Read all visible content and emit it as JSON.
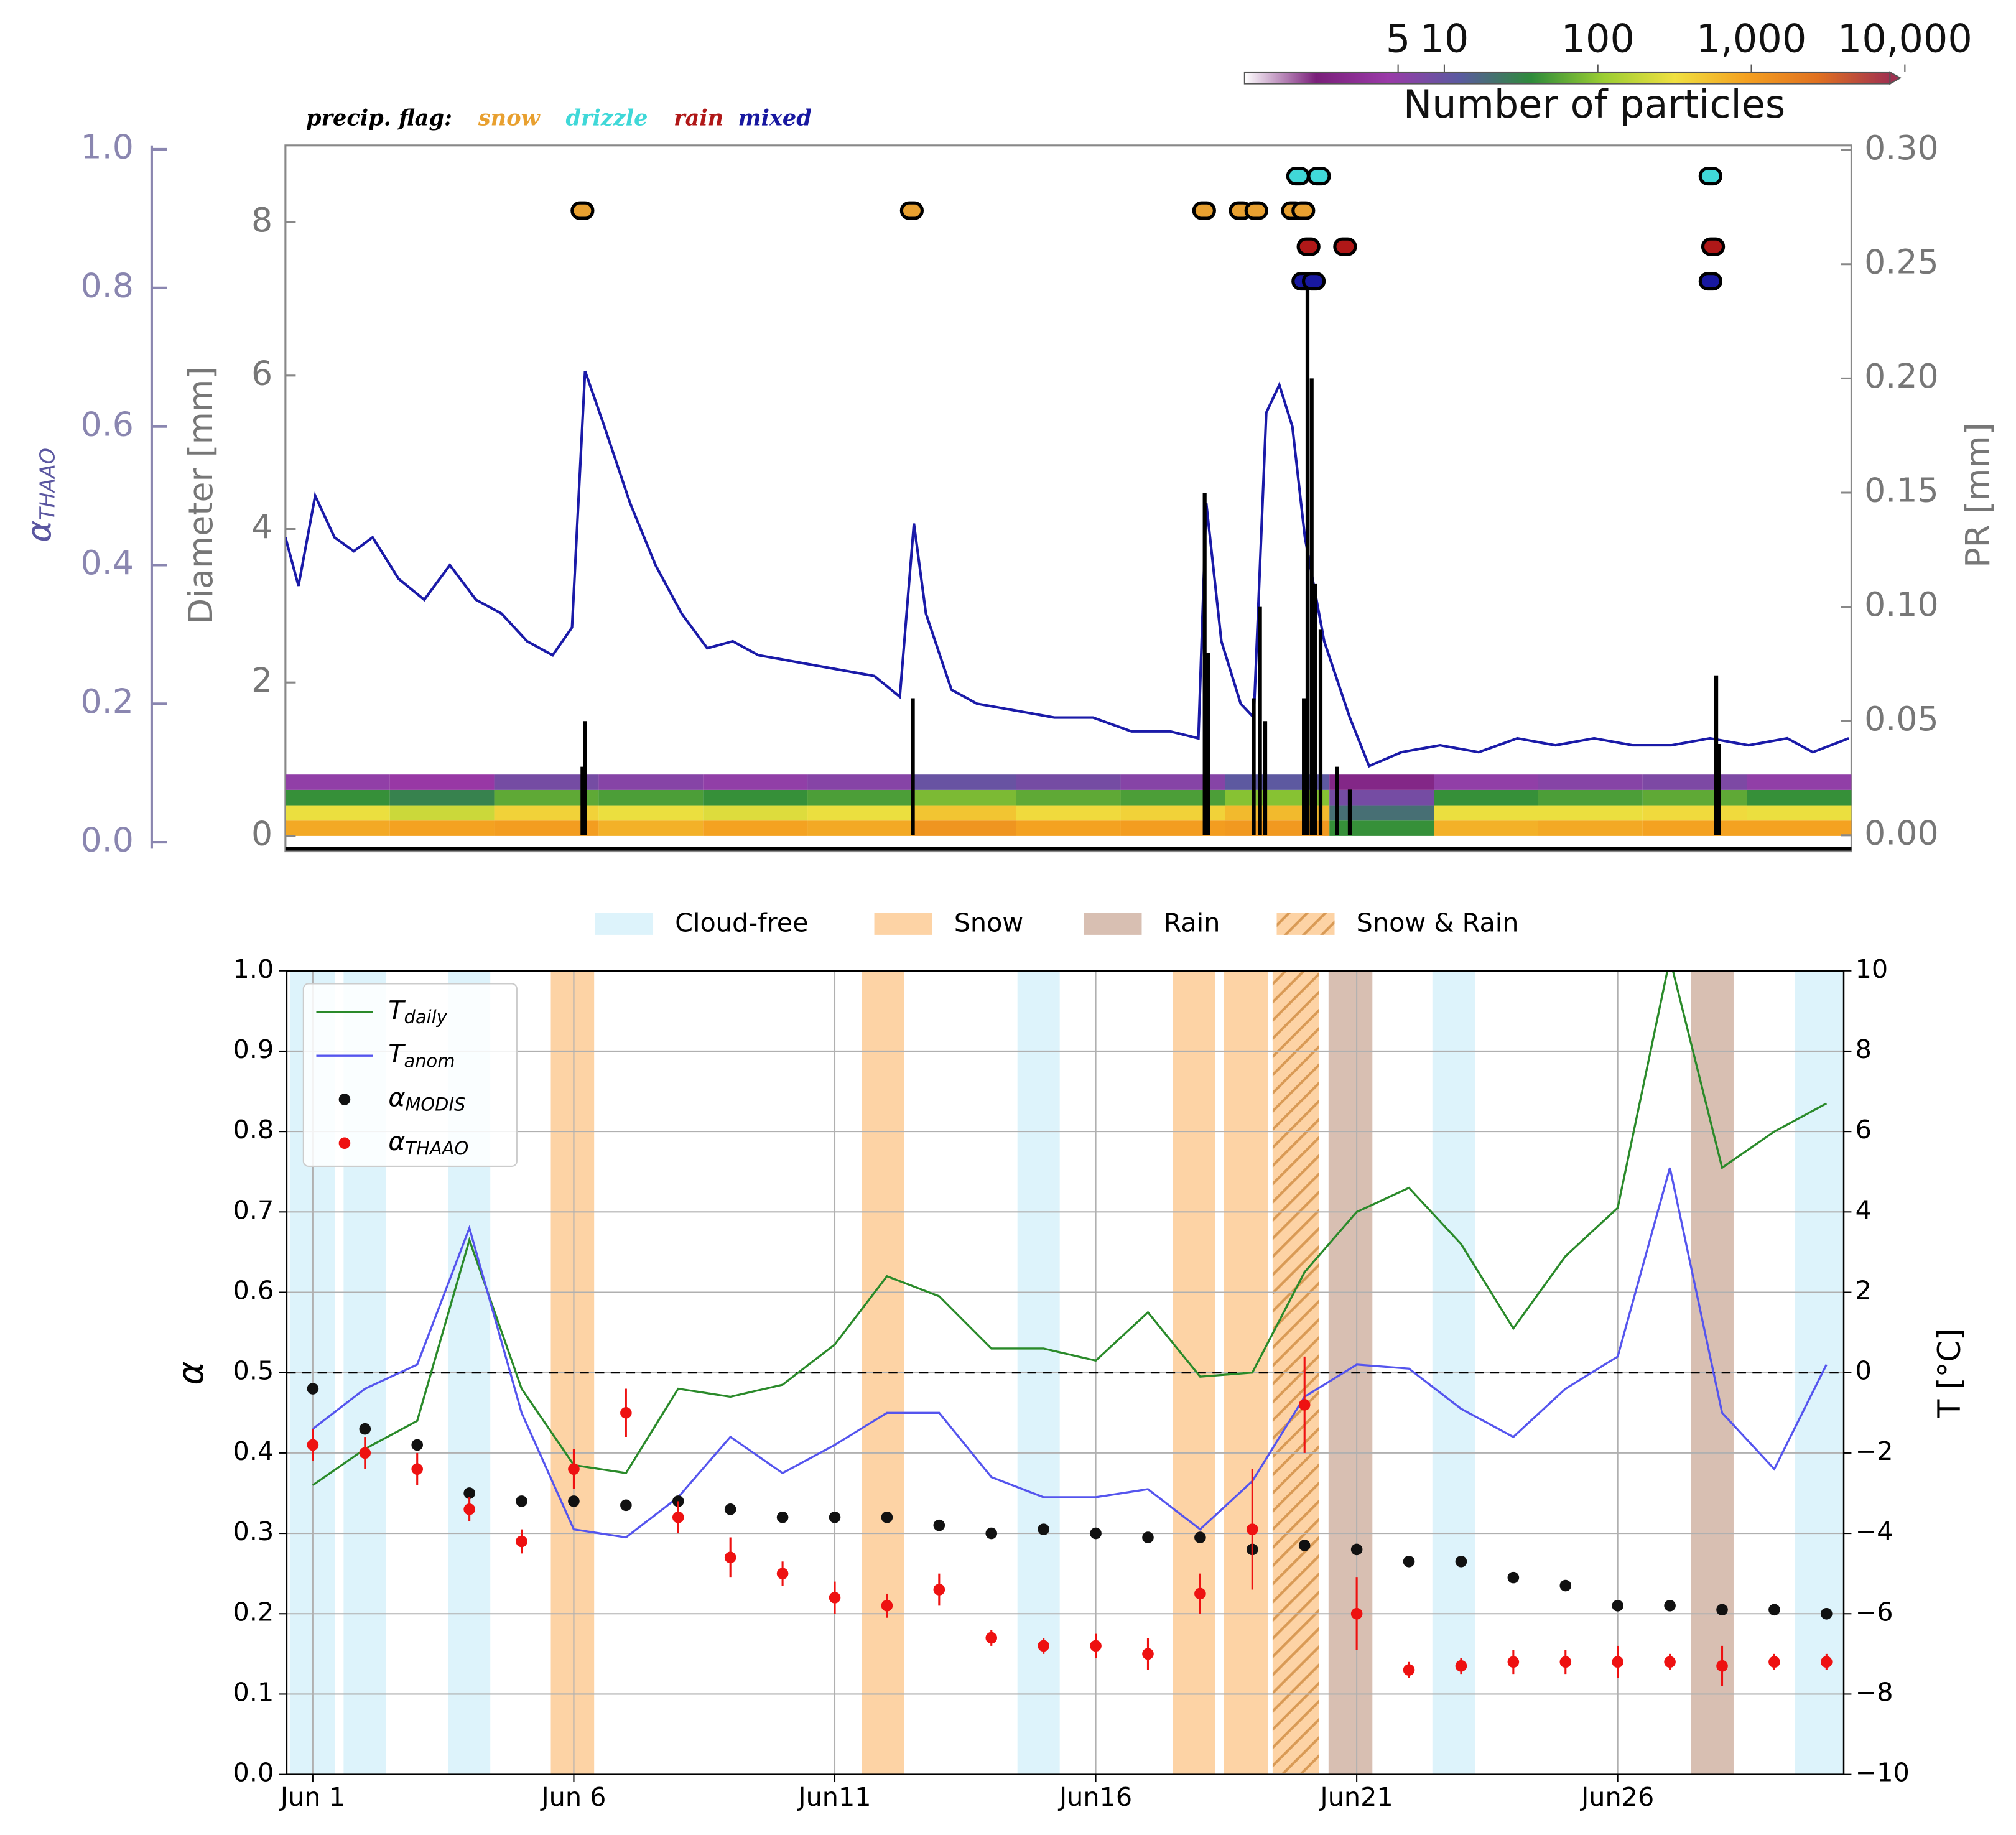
{
  "chart_data": [
    {
      "type": "heatmap",
      "xlim": [
        1,
        31
      ],
      "ylim": [
        0,
        1
      ],
      "yticks": [
        {
          "value": 0,
          "label": "0.0"
        },
        0.2,
        0.4,
        0.6,
        0.8,
        {
          "value": 1,
          "label": "1.0"
        }
      ],
      "ylabel": "αTHAAO",
      "dlim": [
        -0.2,
        9.0
      ],
      "dticks": [
        0,
        2,
        4,
        6,
        8
      ],
      "dlabel": "Diameter [mm]",
      "y2lim": [
        -0.007,
        0.302
      ],
      "y2ticks": [
        {
          "value": 0,
          "label": "0.00"
        },
        0.05,
        {
          "value": 0.1,
          "label": "0.10"
        },
        0.15,
        {
          "value": 0.2,
          "label": "0.20"
        },
        0.25,
        {
          "value": 0.3,
          "label": "0.30"
        }
      ],
      "y2label": "PR [mm]",
      "series": [
        {
          "color": "#1a1aa8",
          "x": [
            1.0,
            1.25,
            1.57,
            1.94,
            2.31,
            2.67,
            3.17,
            3.66,
            4.15,
            4.65,
            5.14,
            5.63,
            6.12,
            6.49,
            6.74,
            7.11,
            7.6,
            8.09,
            8.59,
            9.08,
            9.57,
            10.06,
            10.8,
            11.54,
            12.28,
            12.77,
            13.04,
            13.27,
            13.76,
            14.25,
            14.99,
            15.73,
            16.47,
            17.21,
            17.95,
            18.49,
            18.64,
            18.93,
            19.3,
            19.55,
            19.79,
            20.04,
            20.29,
            20.53,
            20.9,
            21.39,
            21.76,
            22.38,
            23.12,
            23.86,
            24.6,
            25.33,
            26.07,
            26.81,
            27.55,
            28.29,
            29.03,
            29.77,
            30.26,
            30.95
          ],
          "values": [
            0.44,
            0.37,
            0.5,
            0.44,
            0.42,
            0.44,
            0.38,
            0.35,
            0.4,
            0.35,
            0.33,
            0.29,
            0.27,
            0.31,
            0.68,
            0.6,
            0.49,
            0.4,
            0.33,
            0.28,
            0.29,
            0.27,
            0.26,
            0.25,
            0.24,
            0.21,
            0.46,
            0.33,
            0.22,
            0.2,
            0.19,
            0.18,
            0.18,
            0.16,
            0.16,
            0.15,
            0.49,
            0.29,
            0.2,
            0.18,
            0.62,
            0.66,
            0.6,
            0.44,
            0.29,
            0.18,
            0.11,
            0.13,
            0.14,
            0.13,
            0.15,
            0.14,
            0.15,
            0.14,
            0.14,
            0.15,
            0.14,
            0.15,
            0.13,
            0.15
          ]
        }
      ],
      "pr": {
        "color": "#000000",
        "x": [
          6.69,
          6.74,
          13.02,
          18.61,
          18.68,
          19.55,
          19.67,
          19.77,
          20.51,
          20.58,
          20.66,
          20.73,
          20.83,
          21.15,
          21.39,
          28.41,
          28.46
        ],
        "values": [
          0.03,
          0.05,
          0.06,
          0.15,
          0.08,
          0.06,
          0.1,
          0.05,
          0.06,
          0.24,
          0.2,
          0.11,
          0.09,
          0.03,
          0.02,
          0.07,
          0.04
        ]
      },
      "particles": {
        "x_bins": [
          1,
          3,
          5,
          7,
          9,
          11,
          13,
          15,
          17,
          19,
          21,
          23,
          25,
          27,
          29,
          31
        ],
        "d_bins": [
          0,
          0.2,
          0.4,
          0.6,
          0.8
        ],
        "counts": [
          [
            800,
            900,
            1000,
            700,
            900,
            800,
            1200,
            900,
            1000,
            1100,
            40,
            700,
            800,
            900,
            900
          ],
          [
            300,
            200,
            400,
            300,
            250,
            300,
            500,
            350,
            400,
            600,
            20,
            300,
            300,
            350,
            300
          ],
          [
            40,
            30,
            60,
            50,
            40,
            50,
            80,
            60,
            50,
            90,
            8,
            40,
            50,
            60,
            40
          ],
          [
            5,
            4,
            8,
            6,
            5,
            6,
            10,
            8,
            6,
            12,
            2,
            5,
            6,
            7,
            5
          ]
        ]
      },
      "colorbar": {
        "label": "Number of particles",
        "clim": [
          0.5,
          8000
        ],
        "log": true,
        "ticks": [
          5,
          10,
          100,
          {
            "value": 1000,
            "label": "1,000"
          },
          {
            "value": 10000,
            "label": "10,000"
          }
        ],
        "colors": [
          "#ffffff",
          "#7a1f7a",
          "#9a3aa8",
          "#5a5aa0",
          "#2e8b3a",
          "#9acd32",
          "#f0e040",
          "#f4a020",
          "#e07020",
          "#a03050"
        ]
      },
      "precip_flag": {
        "label": "precip. flag:",
        "flags": [
          {
            "name": "snow",
            "color": "#e8a030",
            "d": 8.15,
            "x": [
              6.69,
              13.0,
              18.6,
              19.3,
              19.6,
              20.3,
              20.5
            ]
          },
          {
            "name": "drizzle",
            "color": "#40d8d8",
            "d": 8.6,
            "x": [
              20.4,
              20.8,
              28.3
            ]
          },
          {
            "name": "rain",
            "color": "#b01818",
            "d": 7.68,
            "x": [
              20.6,
              21.3,
              28.35
            ]
          },
          {
            "name": "mixed",
            "color": "#1818a0",
            "d": 7.23,
            "x": [
              20.5,
              20.7,
              28.3
            ]
          }
        ]
      }
    },
    {
      "type": "line",
      "x": [
        1,
        2,
        3,
        4,
        5,
        6,
        7,
        8,
        9,
        10,
        11,
        12,
        13,
        14,
        15,
        16,
        17,
        18,
        19,
        20,
        21,
        22,
        23,
        24,
        25,
        26,
        27,
        28,
        29,
        30
      ],
      "xlim": [
        0.5,
        30.33
      ],
      "xticks": [
        {
          "value": 1,
          "label": "Jun 1"
        },
        {
          "value": 6,
          "label": "Jun 6"
        },
        {
          "value": 11,
          "label": "Jun11"
        },
        {
          "value": 16,
          "label": "Jun16"
        },
        {
          "value": 21,
          "label": "Jun21"
        },
        {
          "value": 26,
          "label": "Jun26"
        }
      ],
      "ylim": [
        0,
        1
      ],
      "yticks": [
        {
          "value": 0,
          "label": "0.0"
        },
        0.1,
        0.2,
        0.3,
        0.4,
        0.5,
        0.6,
        0.7,
        0.8,
        0.9,
        {
          "value": 1,
          "label": "1.0"
        }
      ],
      "y2lim": [
        -10,
        10
      ],
      "y2ticks": [
        {
          "value": -10,
          "label": "−10"
        },
        {
          "value": -8,
          "label": "−8"
        },
        {
          "value": -6,
          "label": "−6"
        },
        {
          "value": -4,
          "label": "−4"
        },
        {
          "value": -2,
          "label": "−2"
        },
        0,
        2,
        4,
        6,
        8,
        10
      ],
      "ylabel": "α",
      "y2label": "T [°C]",
      "grid": true,
      "reference_line": 0.5,
      "regions": [
        {
          "name": "Cloud-free",
          "color": "#ddf3fb",
          "spans": [
            [
              0.56,
              1.42
            ],
            [
              1.59,
              2.4
            ],
            [
              3.59,
              4.4
            ],
            [
              14.5,
              15.31
            ],
            [
              22.45,
              23.27
            ],
            [
              29.4,
              30.33
            ]
          ]
        },
        {
          "name": "Snow",
          "color": "#fdd3a5",
          "spans": [
            [
              5.56,
              6.39
            ],
            [
              11.52,
              12.33
            ],
            [
              17.48,
              18.29
            ],
            [
              18.46,
              19.3
            ]
          ]
        },
        {
          "name": "Rain",
          "color": "#d8bfb2",
          "spans": [
            [
              20.46,
              21.3
            ],
            [
              27.4,
              28.22
            ]
          ]
        },
        {
          "name": "Snow & Rain",
          "color": "#fdd3a5",
          "hatch": true,
          "spans": [
            [
              19.37,
              20.29
            ]
          ]
        }
      ],
      "series": [
        {
          "name": "Tdaily",
          "color": "#2a8a2a",
          "axis": "y2",
          "values": [
            -2.8,
            -1.9,
            -1.2,
            3.3,
            -0.4,
            -2.3,
            -2.5,
            -0.4,
            -0.6,
            -0.3,
            0.7,
            2.4,
            1.9,
            0.6,
            0.6,
            0.3,
            1.5,
            -0.1,
            0.0,
            2.5,
            4.0,
            4.6,
            3.2,
            1.1,
            2.9,
            4.1,
            10.3,
            5.1,
            6.0,
            6.7
          ]
        },
        {
          "name": "Tanom",
          "color": "#5555ee",
          "axis": "y2",
          "values": [
            -1.4,
            -0.4,
            0.2,
            3.6,
            -1.0,
            -3.9,
            -4.1,
            -3.1,
            -1.6,
            -2.5,
            -1.8,
            -1.0,
            -1.0,
            -2.6,
            -3.1,
            -3.1,
            -2.9,
            -3.9,
            -2.7,
            -0.6,
            0.2,
            0.1,
            -0.9,
            -1.6,
            -0.4,
            0.4,
            5.1,
            -1.0,
            -2.4,
            0.2
          ]
        },
        {
          "name": "αMODIS",
          "color": "#111111",
          "marker": true,
          "values": [
            0.48,
            0.43,
            0.41,
            0.35,
            0.34,
            0.34,
            0.335,
            0.34,
            0.33,
            0.32,
            0.32,
            0.32,
            0.31,
            0.3,
            0.305,
            0.3,
            0.295,
            0.295,
            0.28,
            0.285,
            0.28,
            0.265,
            0.265,
            0.245,
            0.235,
            0.21,
            0.21,
            0.205,
            0.205,
            0.2
          ]
        },
        {
          "name": "αTHAAO",
          "color": "#ee1111",
          "marker": true,
          "values": [
            0.41,
            0.4,
            0.38,
            0.33,
            0.29,
            0.38,
            0.45,
            0.32,
            0.27,
            0.25,
            0.22,
            0.21,
            0.23,
            0.17,
            0.16,
            0.16,
            0.15,
            0.225,
            0.305,
            0.46,
            0.2,
            0.13,
            0.135,
            0.14,
            0.14,
            0.14,
            0.14,
            0.135,
            0.14,
            0.14
          ],
          "errors": [
            0.02,
            0.02,
            0.02,
            0.015,
            0.015,
            0.025,
            0.03,
            0.02,
            0.025,
            0.015,
            0.02,
            0.015,
            0.02,
            0.01,
            0.01,
            0.015,
            0.02,
            0.025,
            0.075,
            0.06,
            0.045,
            0.01,
            0.01,
            0.015,
            0.015,
            0.02,
            0.01,
            0.025,
            0.01,
            0.01
          ]
        }
      ]
    }
  ]
}
